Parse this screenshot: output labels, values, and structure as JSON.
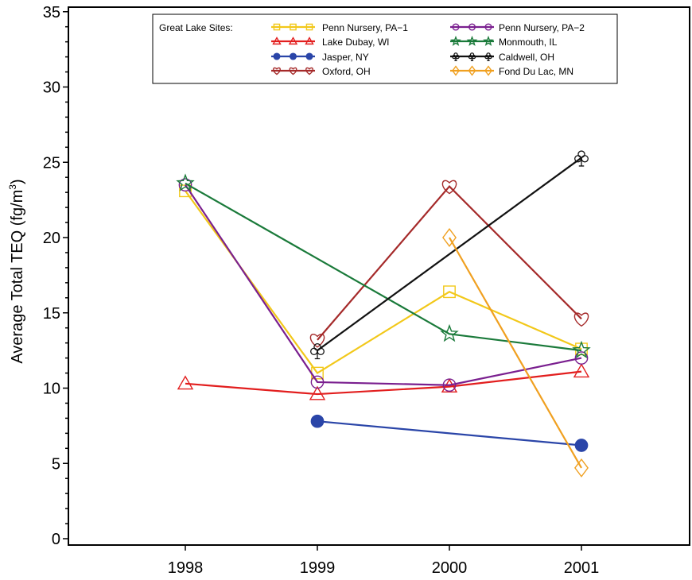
{
  "chart_data": {
    "type": "line",
    "xlabel": "",
    "ylabel": "Average Total TEQ (fg/m",
    "ylabel_sup": "3",
    "ylabel_close": ")",
    "x_ticks": [
      "1998",
      "1999",
      "2000",
      "2001"
    ],
    "y_ticks": [
      "0",
      "5",
      "10",
      "15",
      "20",
      "25",
      "30",
      "35"
    ],
    "ylim": [
      0,
      35
    ],
    "x": [
      1998,
      1999,
      2000,
      2001
    ],
    "grid": false,
    "legend": {
      "title": "Great Lake Sites:",
      "placement": "top-center"
    },
    "series": [
      {
        "name": "Penn Nursery, PA−1",
        "color": "#f2c81a",
        "marker": "square",
        "values": [
          23.1,
          11.0,
          16.4,
          12.6
        ]
      },
      {
        "name": "Lake Dubay, WI",
        "color": "#e21e1e",
        "marker": "triangle",
        "values": [
          10.3,
          9.6,
          10.1,
          11.1
        ]
      },
      {
        "name": "Jasper, NY",
        "color": "#2a45a8",
        "marker": "dot",
        "values": [
          null,
          7.8,
          null,
          6.2
        ]
      },
      {
        "name": "Oxford, OH",
        "color": "#a52a2a",
        "marker": "heart",
        "values": [
          null,
          13.2,
          23.4,
          14.6
        ]
      },
      {
        "name": "Penn Nursery, PA−2",
        "color": "#7a1f8f",
        "marker": "circle",
        "values": [
          23.5,
          10.4,
          10.2,
          12.0
        ]
      },
      {
        "name": "Monmouth, IL",
        "color": "#1a7a3a",
        "marker": "star",
        "values": [
          23.6,
          null,
          13.6,
          12.5
        ]
      },
      {
        "name": "Caldwell, OH",
        "color": "#111111",
        "marker": "club",
        "values": [
          null,
          12.5,
          null,
          25.3
        ]
      },
      {
        "name": "Fond Du Lac, MN",
        "color": "#f0a020",
        "marker": "diamond",
        "values": [
          null,
          null,
          20.0,
          4.7
        ]
      }
    ]
  }
}
